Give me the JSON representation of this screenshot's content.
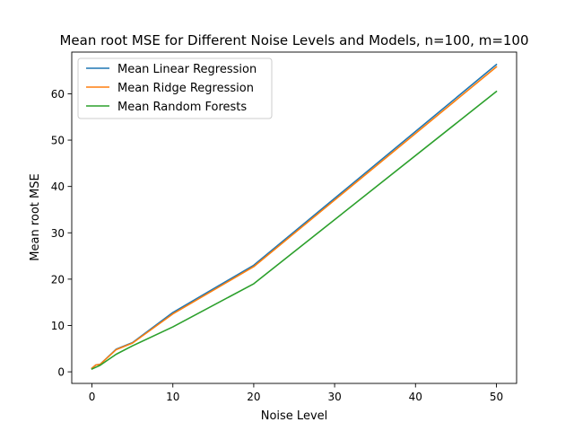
{
  "chart_data": {
    "type": "line",
    "title": "Mean root MSE for Different Noise Levels and Models, n=100, m=100",
    "xlabel": "Noise Level",
    "ylabel": "Mean root MSE",
    "xlim": [
      -2.5,
      52.5
    ],
    "ylim": [
      -2.5,
      69.0
    ],
    "xticks": [
      0,
      10,
      20,
      30,
      40,
      50
    ],
    "yticks": [
      0,
      10,
      20,
      30,
      40,
      50,
      60
    ],
    "xtick_labels": [
      "0",
      "10",
      "20",
      "30",
      "40",
      "50"
    ],
    "ytick_labels": [
      "0",
      "10",
      "20",
      "30",
      "40",
      "50",
      "60"
    ],
    "grid": false,
    "legend_position": "upper-left",
    "x": [
      0,
      0.5,
      1,
      3,
      5,
      10,
      20,
      50
    ],
    "series": [
      {
        "name": "Mean Linear Regression",
        "color": "#1f77b4",
        "values": [
          0.8,
          1.5,
          1.6,
          4.9,
          6.3,
          12.8,
          23.0,
          66.3
        ]
      },
      {
        "name": "Mean Ridge Regression",
        "color": "#ff7f0e",
        "values": [
          0.8,
          1.5,
          1.6,
          4.8,
          6.2,
          12.5,
          22.7,
          65.8
        ]
      },
      {
        "name": "Mean Random Forests",
        "color": "#2ca02c",
        "values": [
          0.6,
          1.0,
          1.4,
          3.8,
          5.6,
          9.7,
          19.0,
          60.5
        ]
      }
    ]
  }
}
